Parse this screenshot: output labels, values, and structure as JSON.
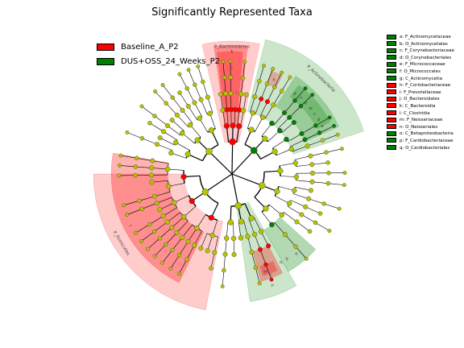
{
  "chart_data": {
    "type": "cladogram",
    "title": "Significantly Represented Taxa",
    "groups": [
      {
        "name": "Baseline_A_P2",
        "color": "#ff0000"
      },
      {
        "name": "DUS+OSS_24_Weeks_P2",
        "color": "#008000"
      }
    ],
    "neutral_color": "#b5c400",
    "sector_labels": [
      "P_Bacteroidetes",
      "P_Actinobacteria",
      "P_Firmicutes",
      "l"
    ],
    "clade_letters": [
      "k",
      "i",
      "n",
      "a",
      "b",
      "c",
      "d",
      "e",
      "f",
      "g",
      "h",
      "j",
      "l",
      "m",
      "o",
      "p",
      "q"
    ],
    "taxa": [
      {
        "key": "a",
        "name": "F_Actinomycetaceae",
        "group": "DUS+OSS_24_Weeks_P2"
      },
      {
        "key": "b",
        "name": "O_Actinomycetales",
        "group": "DUS+OSS_24_Weeks_P2"
      },
      {
        "key": "c",
        "name": "F_Corynebacteriaceae",
        "group": "DUS+OSS_24_Weeks_P2"
      },
      {
        "key": "d",
        "name": "O_Corynebacteriales",
        "group": "DUS+OSS_24_Weeks_P2"
      },
      {
        "key": "e",
        "name": "F_Micrococcaceae",
        "group": "DUS+OSS_24_Weeks_P2"
      },
      {
        "key": "f",
        "name": "O_Micrococcales",
        "group": "DUS+OSS_24_Weeks_P2"
      },
      {
        "key": "g",
        "name": "C_Actinomycetia",
        "group": "DUS+OSS_24_Weeks_P2"
      },
      {
        "key": "h",
        "name": "F_Coriobacteriaceae",
        "group": "Baseline_A_P2"
      },
      {
        "key": "i",
        "name": "F_Prevotellaceae",
        "group": "Baseline_A_P2"
      },
      {
        "key": "j",
        "name": "O_Bacteroidales",
        "group": "Baseline_A_P2"
      },
      {
        "key": "k",
        "name": "C_Bacteroidia",
        "group": "Baseline_A_P2"
      },
      {
        "key": "l",
        "name": "C_Clostridia",
        "group": "Baseline_A_P2"
      },
      {
        "key": "m",
        "name": "F_Neisseriaceae",
        "group": "Baseline_A_P2"
      },
      {
        "key": "n",
        "name": "O_Neisseriales",
        "group": "Baseline_A_P2"
      },
      {
        "key": "o",
        "name": "C_Betaproteobacteria",
        "group": "DUS+OSS_24_Weeks_P2"
      },
      {
        "key": "p",
        "name": "F_Cardiobacteriaceae",
        "group": "DUS+OSS_24_Weeks_P2"
      },
      {
        "key": "q",
        "name": "O_Cardiobacteriales",
        "group": "DUS+OSS_24_Weeks_P2"
      }
    ]
  }
}
